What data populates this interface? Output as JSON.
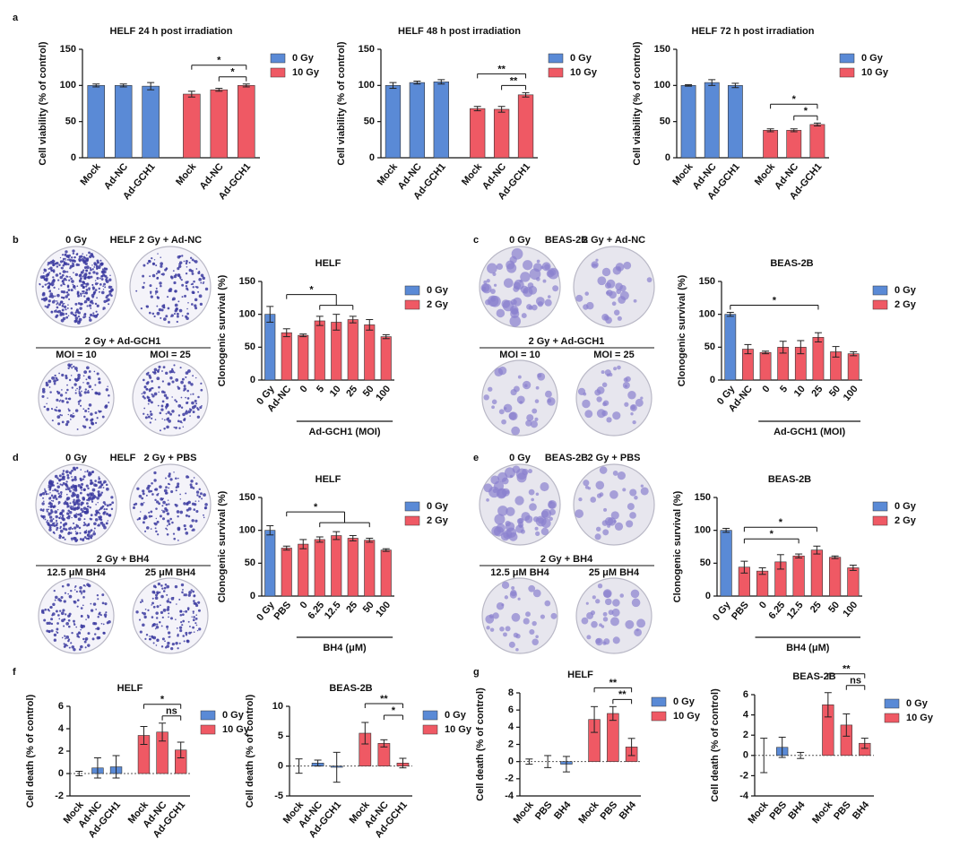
{
  "chart_data": [
    {
      "type": "bar",
      "panel": "a",
      "title": "HELF 24 h post irradiation",
      "ylabel": "Cell viability (% of control)",
      "categories": [
        "Mock",
        "Ad-NC",
        "Ad-GCH1",
        "Mock",
        "Ad-NC",
        "Ad-GCH1"
      ],
      "series": [
        {
          "name": "0 Gy",
          "color": "#5a8ad6",
          "values": [
            100,
            100,
            99,
            null,
            null,
            null
          ],
          "errors": [
            2,
            2,
            5,
            null,
            null,
            null
          ]
        },
        {
          "name": "10 Gy",
          "color": "#ef5964",
          "values": [
            null,
            null,
            null,
            88,
            94,
            100
          ],
          "errors": [
            null,
            null,
            null,
            4,
            2,
            2
          ]
        }
      ],
      "ylim": [
        0,
        150
      ],
      "yticks": [
        0,
        50,
        100,
        150
      ],
      "legend": "right",
      "annotations": [
        {
          "text": "*",
          "from": 3,
          "to": 5
        },
        {
          "text": "*",
          "from": 4,
          "to": 5
        }
      ]
    },
    {
      "type": "bar",
      "title": "HELF 48 h post irradiation",
      "ylabel": "Cell viability (% of control)",
      "categories": [
        "Mock",
        "Ad-NC",
        "Ad-GCH1",
        "Mock",
        "Ad-NC",
        "Ad-GCH1"
      ],
      "series": [
        {
          "name": "0 Gy",
          "color": "#5a8ad6",
          "values": [
            100,
            104,
            105,
            null,
            null,
            null
          ],
          "errors": [
            4,
            2,
            3,
            null,
            null,
            null
          ]
        },
        {
          "name": "10 Gy",
          "color": "#ef5964",
          "values": [
            null,
            null,
            null,
            68,
            67,
            87
          ],
          "errors": [
            null,
            null,
            null,
            3,
            4,
            3
          ]
        }
      ],
      "ylim": [
        0,
        150
      ],
      "yticks": [
        0,
        50,
        100,
        150
      ],
      "legend": "right",
      "annotations": [
        {
          "text": "**",
          "from": 3,
          "to": 5
        },
        {
          "text": "**",
          "from": 4,
          "to": 5
        }
      ]
    },
    {
      "type": "bar",
      "title": "HELF 72 h post irradiation",
      "ylabel": "Cell viability (% of control)",
      "categories": [
        "Mock",
        "Ad-NC",
        "Ad-GCH1",
        "Mock",
        "Ad-NC",
        "Ad-GCH1"
      ],
      "series": [
        {
          "name": "0 Gy",
          "color": "#5a8ad6",
          "values": [
            100,
            104,
            100,
            null,
            null,
            null
          ],
          "errors": [
            1,
            4,
            3,
            null,
            null,
            null
          ]
        },
        {
          "name": "10 Gy",
          "color": "#ef5964",
          "values": [
            null,
            null,
            null,
            38,
            38,
            46
          ],
          "errors": [
            null,
            null,
            null,
            2,
            2,
            2
          ]
        }
      ],
      "ylim": [
        0,
        150
      ],
      "yticks": [
        0,
        50,
        100,
        150
      ],
      "legend": "right",
      "annotations": [
        {
          "text": "*",
          "from": 3,
          "to": 5
        },
        {
          "text": "*",
          "from": 4,
          "to": 5
        }
      ]
    },
    {
      "type": "bar",
      "panel": "b",
      "title": "HELF",
      "ylabel": "Clonogenic survival (%)",
      "plates": {
        "cell": "HELF",
        "top": [
          "0 Gy",
          "2 Gy + Ad-NC"
        ],
        "treatment": "2 Gy + Ad-GCH1",
        "bottom": [
          "MOI = 10",
          "MOI = 25"
        ]
      },
      "categories": [
        "0 Gy",
        "Ad-NC",
        "0",
        "5",
        "10",
        "25",
        "50",
        "100"
      ],
      "xgroup": {
        "label": "Ad-GCH1 (MOI)",
        "from": 2,
        "to": 7
      },
      "series": [
        {
          "name": "0 Gy",
          "color": "#5a8ad6",
          "values": [
            100,
            null,
            null,
            null,
            null,
            null,
            null,
            null
          ],
          "errors": [
            12,
            null,
            null,
            null,
            null,
            null,
            null,
            null
          ]
        },
        {
          "name": "2 Gy",
          "color": "#ef5964",
          "values": [
            null,
            72,
            68,
            90,
            88,
            92,
            84,
            66
          ],
          "errors": [
            null,
            6,
            2,
            7,
            12,
            5,
            8,
            3
          ]
        }
      ],
      "ylim": [
        0,
        150
      ],
      "yticks": [
        0,
        50,
        100,
        150
      ],
      "legend": "right",
      "annotations": [
        {
          "text": "*",
          "from": 1,
          "to": [
            3,
            5
          ]
        }
      ]
    },
    {
      "type": "bar",
      "panel": "c",
      "title": "BEAS-2B",
      "ylabel": "Clonogenic survival (%)",
      "plates": {
        "cell": "BEAS-2B",
        "top": [
          "0 Gy",
          "2 Gy + Ad-NC"
        ],
        "treatment": "2 Gy + Ad-GCH1",
        "bottom": [
          "MOI = 10",
          "MOI = 25"
        ]
      },
      "categories": [
        "0 Gy",
        "Ad-NC",
        "0",
        "5",
        "10",
        "25",
        "50",
        "100"
      ],
      "xgroup": {
        "label": "Ad-GCH1 (MOI)",
        "from": 2,
        "to": 7
      },
      "series": [
        {
          "name": "0 Gy",
          "color": "#5a8ad6",
          "values": [
            100,
            null,
            null,
            null,
            null,
            null,
            null,
            null
          ],
          "errors": [
            3,
            null,
            null,
            null,
            null,
            null,
            null,
            null
          ]
        },
        {
          "name": "2 Gy",
          "color": "#ef5964",
          "values": [
            null,
            47,
            42,
            50,
            50,
            65,
            43,
            40
          ],
          "errors": [
            null,
            7,
            2,
            9,
            10,
            7,
            8,
            3
          ]
        }
      ],
      "ylim": [
        0,
        150
      ],
      "yticks": [
        0,
        50,
        100,
        150
      ],
      "legend": "right",
      "annotations": [
        {
          "text": "*",
          "from": 0,
          "to": 5
        }
      ]
    },
    {
      "type": "bar",
      "panel": "d",
      "title": "HELF",
      "ylabel": "Clonogenic survival (%)",
      "plates": {
        "cell": "HELF",
        "top": [
          "0 Gy",
          "2 Gy + PBS"
        ],
        "treatment": "2 Gy + BH4",
        "bottom": [
          "12.5 μM BH4",
          "25 μM BH4"
        ]
      },
      "categories": [
        "0 Gy",
        "PBS",
        "0",
        "6.25",
        "12.5",
        "25",
        "50",
        "100"
      ],
      "xgroup": {
        "label": "BH4 (μM)",
        "from": 2,
        "to": 7
      },
      "series": [
        {
          "name": "0 Gy",
          "color": "#5a8ad6",
          "values": [
            100,
            null,
            null,
            null,
            null,
            null,
            null,
            null
          ],
          "errors": [
            7,
            null,
            null,
            null,
            null,
            null,
            null,
            null
          ]
        },
        {
          "name": "2 Gy",
          "color": "#ef5964",
          "values": [
            null,
            73,
            79,
            86,
            92,
            88,
            85,
            70
          ],
          "errors": [
            null,
            3,
            7,
            4,
            6,
            4,
            3,
            2
          ]
        }
      ],
      "ylim": [
        0,
        150
      ],
      "yticks": [
        0,
        50,
        100,
        150
      ],
      "legend": "right",
      "annotations": [
        {
          "text": "*",
          "from": 1,
          "to": [
            3,
            6
          ]
        }
      ]
    },
    {
      "type": "bar",
      "panel": "e",
      "title": "BEAS-2B",
      "ylabel": "Clonogenic survival (%)",
      "plates": {
        "cell": "BEAS-2B",
        "top": [
          "0 Gy",
          "2 Gy + PBS"
        ],
        "treatment": "2 Gy + BH4",
        "bottom": [
          "12.5 μM BH4",
          "25 μM BH4"
        ]
      },
      "categories": [
        "0 Gy",
        "PBS",
        "0",
        "6.25",
        "12.5",
        "25",
        "50",
        "100"
      ],
      "xgroup": {
        "label": "BH4 (μM)",
        "from": 2,
        "to": 7
      },
      "series": [
        {
          "name": "0 Gy",
          "color": "#5a8ad6",
          "values": [
            100,
            null,
            null,
            null,
            null,
            null,
            null,
            null
          ],
          "errors": [
            3,
            null,
            null,
            null,
            null,
            null,
            null,
            null
          ]
        },
        {
          "name": "2 Gy",
          "color": "#ef5964",
          "values": [
            null,
            44,
            38,
            52,
            61,
            70,
            59,
            43
          ],
          "errors": [
            null,
            9,
            5,
            11,
            3,
            6,
            2,
            4
          ]
        }
      ],
      "ylim": [
        0,
        150
      ],
      "yticks": [
        0,
        50,
        100,
        150
      ],
      "legend": "right",
      "annotations": [
        {
          "text": "*",
          "from": 1,
          "to": 5
        },
        {
          "text": "*",
          "from": 1,
          "to": 4
        }
      ]
    },
    {
      "type": "bar",
      "panel": "f",
      "title": "HELF",
      "ylabel": "Cell death (% of control)",
      "categories": [
        "Mock",
        "Ad-NC",
        "Ad-GCH1",
        "Mock",
        "Ad-NC",
        "Ad-GCH1"
      ],
      "series": [
        {
          "name": "0 Gy",
          "color": "#5a8ad6",
          "values": [
            0,
            0.5,
            0.6,
            null,
            null,
            null
          ],
          "errors": [
            0.2,
            0.9,
            1.0,
            null,
            null,
            null
          ]
        },
        {
          "name": "10 Gy",
          "color": "#ef5964",
          "values": [
            null,
            null,
            null,
            3.4,
            3.7,
            2.1
          ],
          "errors": [
            null,
            null,
            null,
            0.8,
            0.8,
            0.7
          ]
        }
      ],
      "ylim": [
        -2,
        6
      ],
      "yticks": [
        -2,
        0,
        2,
        4,
        6
      ],
      "legend": "right",
      "annotations": [
        {
          "text": "*",
          "from": 3,
          "to": 5
        },
        {
          "text": "ns",
          "from": 4,
          "to": 5
        }
      ]
    },
    {
      "type": "bar",
      "title": "BEAS-2B",
      "ylabel": "Cell death (% of control)",
      "categories": [
        "Mock",
        "Ad-NC",
        "Ad-GCH1",
        "Mock",
        "Ad-NC",
        "Ad-GCH1"
      ],
      "series": [
        {
          "name": "0 Gy",
          "color": "#5a8ad6",
          "values": [
            0,
            0.5,
            -0.2,
            null,
            null,
            null
          ],
          "errors": [
            1.2,
            0.5,
            2.5,
            null,
            null,
            null
          ]
        },
        {
          "name": "10 Gy",
          "color": "#ef5964",
          "values": [
            null,
            null,
            null,
            5.5,
            3.8,
            0.5
          ],
          "errors": [
            null,
            null,
            null,
            1.8,
            0.6,
            0.8
          ]
        }
      ],
      "ylim": [
        -5,
        10
      ],
      "yticks": [
        -5,
        0,
        5,
        10
      ],
      "legend": "right",
      "annotations": [
        {
          "text": "**",
          "from": 3,
          "to": 5
        },
        {
          "text": "*",
          "from": 4,
          "to": 5
        }
      ]
    },
    {
      "type": "bar",
      "panel": "g",
      "title": "HELF",
      "ylabel": "Cell death (% of control)",
      "categories": [
        "Mock",
        "PBS",
        "BH4",
        "Mock",
        "PBS",
        "BH4"
      ],
      "series": [
        {
          "name": "0 Gy",
          "color": "#5a8ad6",
          "values": [
            0,
            0,
            -0.3,
            null,
            null,
            null
          ],
          "errors": [
            0.3,
            0.7,
            0.9,
            null,
            null,
            null
          ]
        },
        {
          "name": "10 Gy",
          "color": "#ef5964",
          "values": [
            null,
            null,
            null,
            4.9,
            5.6,
            1.7
          ],
          "errors": [
            null,
            null,
            null,
            1.5,
            0.8,
            1.0
          ]
        }
      ],
      "ylim": [
        -4,
        8
      ],
      "yticks": [
        -4,
        -2,
        0,
        2,
        4,
        6,
        8
      ],
      "legend": "right",
      "annotations": [
        {
          "text": "**",
          "from": 3,
          "to": 5
        },
        {
          "text": "**",
          "from": 4,
          "to": 5
        }
      ]
    },
    {
      "type": "bar",
      "title": "BEAS-2B",
      "ylabel": "Cell death (% of control)",
      "categories": [
        "Mock",
        "PBS",
        "BH4",
        "Mock",
        "PBS",
        "BH4"
      ],
      "series": [
        {
          "name": "0 Gy",
          "color": "#5a8ad6",
          "values": [
            0,
            0.8,
            0,
            null,
            null,
            null
          ],
          "errors": [
            1.7,
            1.0,
            0.3,
            null,
            null,
            null
          ]
        },
        {
          "name": "10 Gy",
          "color": "#ef5964",
          "values": [
            null,
            null,
            null,
            5.0,
            3.0,
            1.2
          ],
          "errors": [
            null,
            null,
            null,
            1.2,
            1.1,
            0.5
          ]
        }
      ],
      "ylim": [
        -4,
        6
      ],
      "yticks": [
        -4,
        -2,
        0,
        2,
        4,
        6
      ],
      "legend": "right",
      "annotations": [
        {
          "text": "**",
          "from": 3,
          "to": 5
        },
        {
          "text": "ns",
          "from": 4,
          "to": 5
        }
      ]
    }
  ]
}
